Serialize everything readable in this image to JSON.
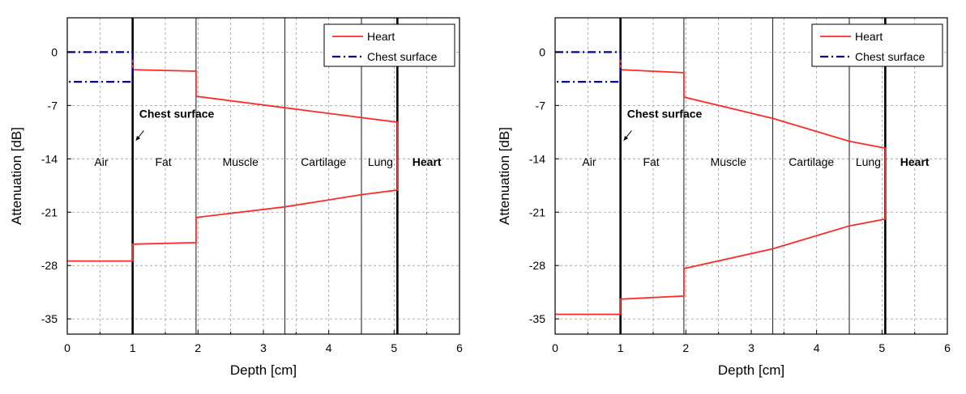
{
  "chart_data": [
    {
      "type": "line",
      "xlabel": "Depth [cm]",
      "ylabel": "Attenuation [dB]",
      "xlim": [
        0,
        6
      ],
      "ylim": [
        -37,
        4.5
      ],
      "xticks": [
        "0",
        "1",
        "2",
        "3",
        "4",
        "5",
        "6"
      ],
      "yticks": [
        "0",
        "-7",
        "-14",
        "-21",
        "-28",
        "-35"
      ],
      "grid": true,
      "legend": "top-right",
      "boundaries": [
        1,
        1.97,
        3.33,
        4.5,
        5.05
      ],
      "regions": [
        {
          "label": "Air",
          "x": 0.52,
          "y": -14.9
        },
        {
          "label": "Fat",
          "x": 1.47,
          "y": -14.9
        },
        {
          "label": "Muscle",
          "x": 2.65,
          "y": -14.9
        },
        {
          "label": "Cartilage",
          "x": 3.92,
          "y": -14.9
        },
        {
          "label": "Lung",
          "x": 4.79,
          "y": -14.9
        },
        {
          "label": "Heart",
          "x": 5.5,
          "y": -14.9
        }
      ],
      "annotation": {
        "text": "Chest surface",
        "x": 1.1,
        "y": -8.6,
        "arrow_from": [
          1.17,
          -10.3
        ],
        "arrow_to": [
          1.05,
          -11.6
        ]
      },
      "series": [
        {
          "name": "Heart",
          "color": "#ff2a2a",
          "x": [
            1,
            1,
            1.97,
            1.97,
            3.33,
            5.05,
            5.05,
            4.5,
            3.33,
            1.97,
            1.97,
            1,
            1,
            0
          ],
          "y": [
            0,
            -2.3,
            -2.5,
            -5.8,
            -7.3,
            -9.2,
            -18.1,
            -18.7,
            -20.3,
            -21.7,
            -25.0,
            -25.2,
            -27.4,
            -27.4
          ]
        },
        {
          "name": "Chest surface",
          "color": "#00008b",
          "x": [
            0,
            1,
            1,
            0
          ],
          "y": [
            0,
            0,
            -3.9,
            -3.9
          ]
        }
      ]
    },
    {
      "type": "line",
      "xlabel": "Depth [cm]",
      "ylabel": "Attenuation [dB]",
      "xlim": [
        0,
        6
      ],
      "ylim": [
        -37,
        4.5
      ],
      "xticks": [
        "0",
        "1",
        "2",
        "3",
        "4",
        "5",
        "6"
      ],
      "yticks": [
        "0",
        "-7",
        "-14",
        "-21",
        "-28",
        "-35"
      ],
      "grid": true,
      "legend": "top-right",
      "boundaries": [
        1,
        1.97,
        3.33,
        4.5,
        5.05
      ],
      "regions": [
        {
          "label": "Air",
          "x": 0.52,
          "y": -14.9
        },
        {
          "label": "Fat",
          "x": 1.47,
          "y": -14.9
        },
        {
          "label": "Muscle",
          "x": 2.65,
          "y": -14.9
        },
        {
          "label": "Cartilage",
          "x": 3.92,
          "y": -14.9
        },
        {
          "label": "Lung",
          "x": 4.79,
          "y": -14.9
        },
        {
          "label": "Heart",
          "x": 5.5,
          "y": -14.9
        }
      ],
      "annotation": {
        "text": "Chest surface",
        "x": 1.1,
        "y": -8.6,
        "arrow_from": [
          1.17,
          -10.3
        ],
        "arrow_to": [
          1.05,
          -11.6
        ]
      },
      "series": [
        {
          "name": "Heart",
          "color": "#ff2a2a",
          "x": [
            1,
            1,
            1.97,
            1.97,
            3.33,
            4.5,
            5.05,
            5.05,
            4.5,
            3.33,
            1.97,
            1.97,
            1,
            1,
            0
          ],
          "y": [
            0,
            -2.3,
            -2.7,
            -5.9,
            -8.7,
            -11.7,
            -12.6,
            -21.9,
            -22.8,
            -25.8,
            -28.4,
            -32.0,
            -32.4,
            -34.4,
            -34.4
          ]
        },
        {
          "name": "Chest surface",
          "color": "#00008b",
          "x": [
            0,
            1,
            1,
            0
          ],
          "y": [
            0,
            0,
            -3.9,
            -3.9
          ]
        }
      ]
    }
  ]
}
